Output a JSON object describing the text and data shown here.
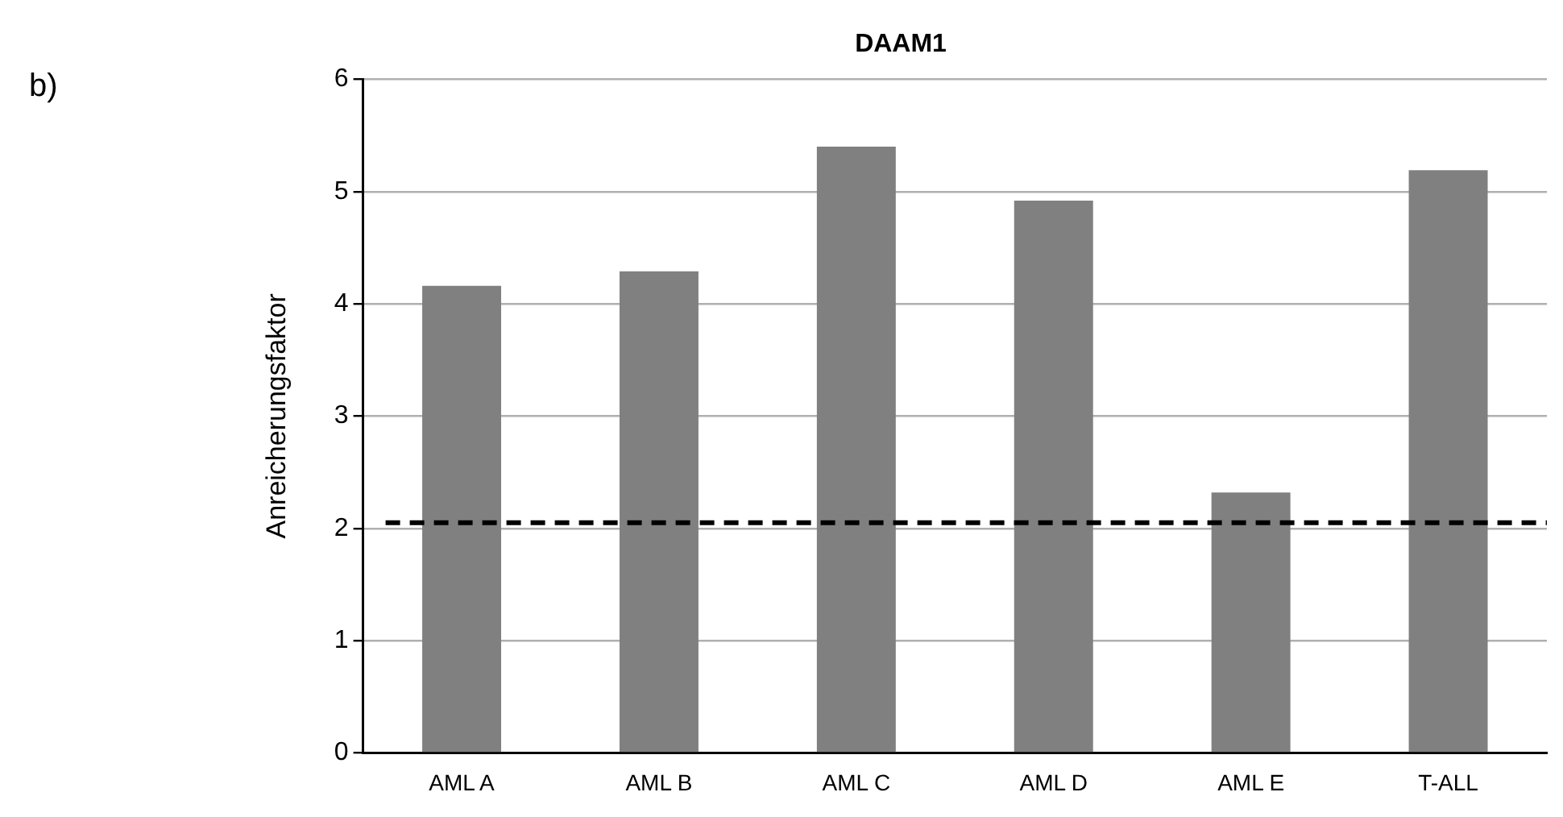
{
  "chart_data": {
    "type": "bar",
    "title": "DAAM1",
    "ylabel": "Anreicherungsfaktor",
    "categories": [
      "AML A",
      "AML B",
      "AML C",
      "AML D",
      "AML E",
      "T-ALL"
    ],
    "values": [
      4.16,
      4.29,
      5.4,
      4.92,
      2.32,
      5.19
    ],
    "color": "#808080",
    "ylim": [
      0,
      6
    ],
    "yticks": [
      0,
      1,
      2,
      3,
      4,
      5,
      6
    ],
    "grid": "y",
    "ref_lines": [
      {
        "axis": "y",
        "value": 2.05,
        "color": "#000000",
        "line_style": "dashed"
      }
    ],
    "annotations": [
      "b)"
    ]
  }
}
